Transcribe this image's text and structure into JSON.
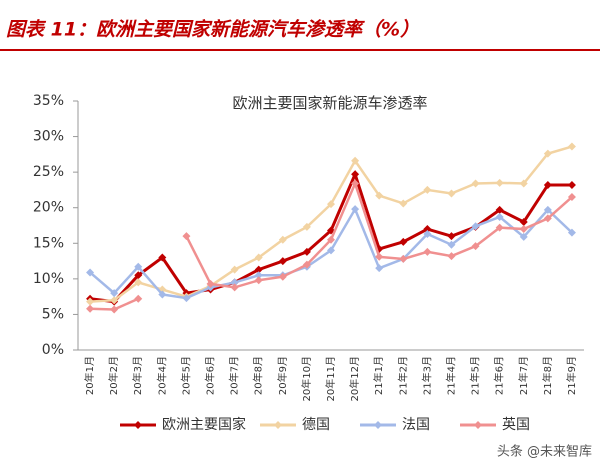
{
  "header": {
    "title": "图表 11：欧洲主要国家新能源汽车渗透率（%）"
  },
  "watermark": "头条 @未来智库",
  "chart_data": {
    "type": "line",
    "title": "欧洲主要国家新能源车渗透率",
    "categories": [
      "20年1月",
      "20年2月",
      "20年3月",
      "20年4月",
      "20年5月",
      "20年6月",
      "20年7月",
      "20年8月",
      "20年9月",
      "20年10月",
      "20年11月",
      "20年12月",
      "21年1月",
      "21年2月",
      "21年3月",
      "21年4月",
      "21年5月",
      "21年6月",
      "21年7月",
      "21年8月",
      "21年9月"
    ],
    "series": [
      {
        "name": "欧洲主要国家",
        "color": "#c00000",
        "values": [
          7.2,
          6.8,
          10.5,
          13,
          8,
          8.5,
          9.5,
          11.3,
          12.5,
          13.8,
          16.8,
          24.7,
          14.2,
          15.2,
          17,
          16,
          17.3,
          19.7,
          18,
          23.2,
          23.2
        ]
      },
      {
        "name": "德国",
        "color": "#f2d3a2",
        "values": [
          6.8,
          7,
          9.5,
          8.5,
          7.5,
          9,
          11.3,
          13,
          15.5,
          17.3,
          20.5,
          26.6,
          21.7,
          20.6,
          22.5,
          22,
          23.4,
          23.5,
          23.4,
          27.6,
          28.6
        ]
      },
      {
        "name": "法国",
        "color": "#a3b9e8",
        "values": [
          10.9,
          8,
          11.7,
          7.8,
          7.3,
          8.8,
          9.5,
          10.5,
          10.5,
          11.7,
          14,
          19.8,
          11.5,
          12.8,
          16.3,
          14.8,
          17.4,
          18.7,
          15.9,
          19.7,
          16.5
        ]
      },
      {
        "name": "英国",
        "color": "#f09090",
        "values": [
          5.8,
          5.7,
          7.2,
          null,
          16,
          9.3,
          8.8,
          9.8,
          10.3,
          12,
          15.5,
          23.4,
          13.1,
          12.8,
          13.8,
          13.2,
          14.6,
          17.2,
          17,
          18.5,
          21.5
        ]
      }
    ],
    "ylim": [
      0,
      35
    ],
    "yticks": [
      {
        "value": 0,
        "label": "0%"
      },
      {
        "value": 5,
        "label": "5%"
      },
      {
        "value": 10,
        "label": "10%"
      },
      {
        "value": 15,
        "label": "15%"
      },
      {
        "value": 20,
        "label": "20%"
      },
      {
        "value": 25,
        "label": "25%"
      },
      {
        "value": 30,
        "label": "30%"
      },
      {
        "value": 35,
        "label": "35%"
      }
    ],
    "legend": "bottom"
  }
}
